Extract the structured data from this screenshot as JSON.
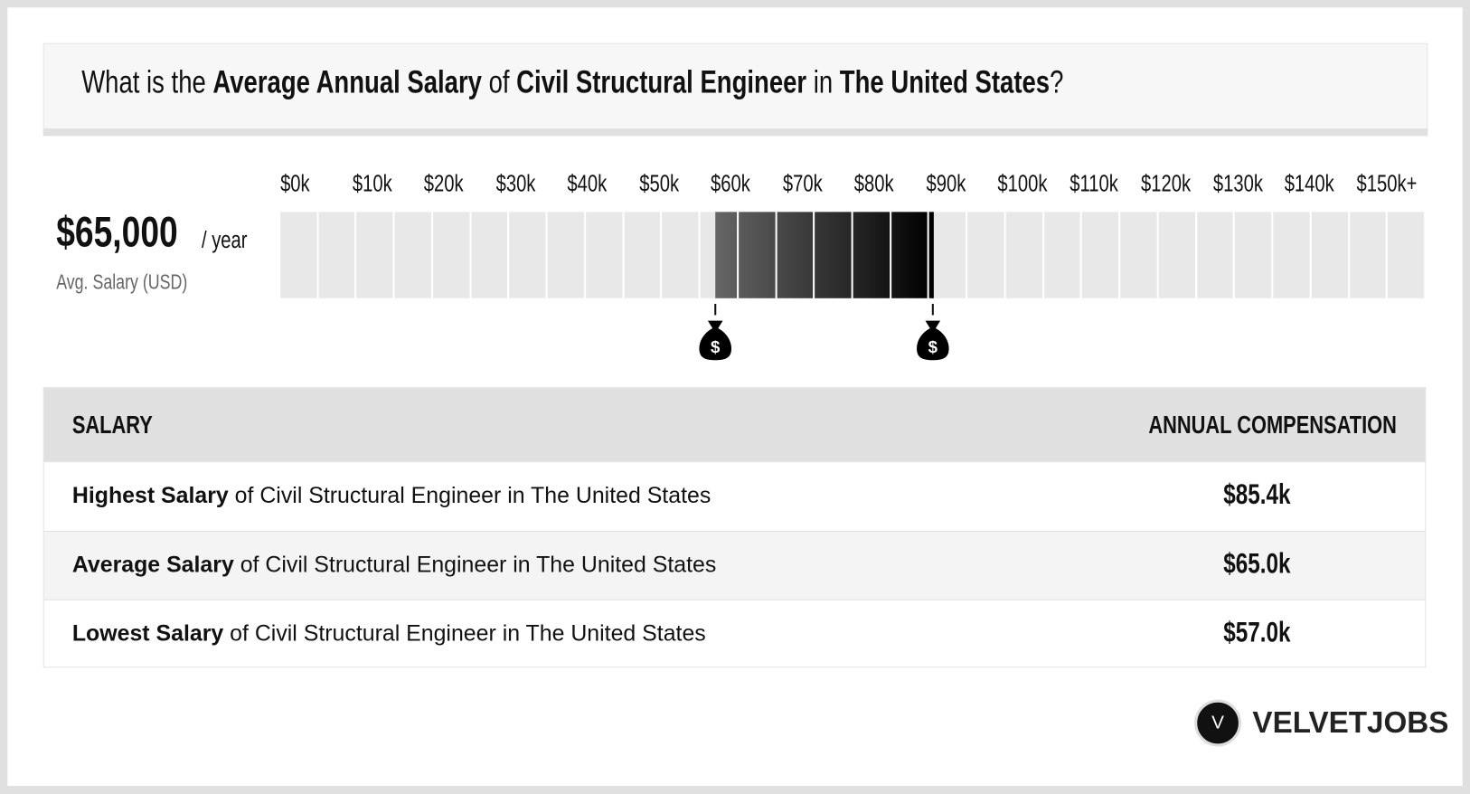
{
  "title": {
    "p1": "What is the ",
    "b1": "Average Annual Salary",
    "p2": " of ",
    "b2": "Civil Structural Engineer",
    "p3": " in ",
    "b3": "The United States",
    "p4": "?"
  },
  "summary": {
    "value": "$65,000",
    "unit": "/ year",
    "label": "Avg. Salary (USD)"
  },
  "chart_data": {
    "type": "bar",
    "x_ticks": [
      "$0k",
      "$10k",
      "$20k",
      "$30k",
      "$40k",
      "$50k",
      "$60k",
      "$70k",
      "$80k",
      "$90k",
      "$100k",
      "$110k",
      "$120k",
      "$130k",
      "$140k",
      "$150k+"
    ],
    "xlim": [
      0,
      150
    ],
    "unit": "$k",
    "segment_step": 5,
    "range_low": 57.0,
    "range_high": 85.4,
    "average": 65.0,
    "colors": {
      "track": "#e8e8e8",
      "fill_start": "#666666",
      "fill_end": "#000000"
    }
  },
  "table": {
    "headers": [
      "SALARY",
      "ANNUAL COMPENSATION"
    ],
    "rows": [
      {
        "bold": "Highest Salary",
        "rest": " of Civil Structural Engineer in The United States",
        "value": "$85.4k"
      },
      {
        "bold": "Average Salary",
        "rest": " of Civil Structural Engineer in The United States",
        "value": "$65.0k"
      },
      {
        "bold": "Lowest Salary",
        "rest": " of Civil Structural Engineer in The United States",
        "value": "$57.0k"
      }
    ]
  },
  "logo": {
    "letter": "V",
    "text": "VELVETJOBS"
  },
  "icons": {
    "marker": "money-bag-icon"
  }
}
